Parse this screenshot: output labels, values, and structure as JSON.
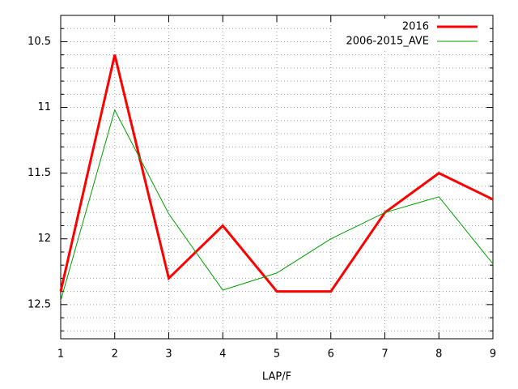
{
  "chart_data": {
    "type": "line",
    "x": [
      1,
      2,
      3,
      4,
      5,
      6,
      7,
      8,
      9
    ],
    "series": [
      {
        "name": "2016",
        "color": "#ff0000",
        "values": [
          12.4,
          10.6,
          12.3,
          11.9,
          12.4,
          12.4,
          11.8,
          11.5,
          11.7
        ]
      },
      {
        "name": "2006-2015_AVE",
        "color": "#00a000",
        "values": [
          12.47,
          11.02,
          11.81,
          12.39,
          12.26,
          12.0,
          11.8,
          11.68,
          12.19
        ]
      }
    ],
    "xlabel": "LAP/F",
    "xlim": [
      1,
      9
    ],
    "xticks": [
      1,
      2,
      3,
      4,
      5,
      6,
      7,
      8,
      9
    ],
    "ylim": [
      10.3,
      12.76
    ],
    "y_reversed": true,
    "yticks": [
      10.5,
      11,
      11.5,
      12,
      12.5
    ],
    "y_minor_ticks": [
      10.3,
      10.4,
      10.6,
      10.7,
      10.8,
      10.9,
      11.1,
      11.2,
      11.3,
      11.4,
      11.6,
      11.7,
      11.8,
      11.9,
      12.1,
      12.2,
      12.3,
      12.4,
      12.6,
      12.7
    ],
    "grid": true,
    "legend": "top-right"
  }
}
